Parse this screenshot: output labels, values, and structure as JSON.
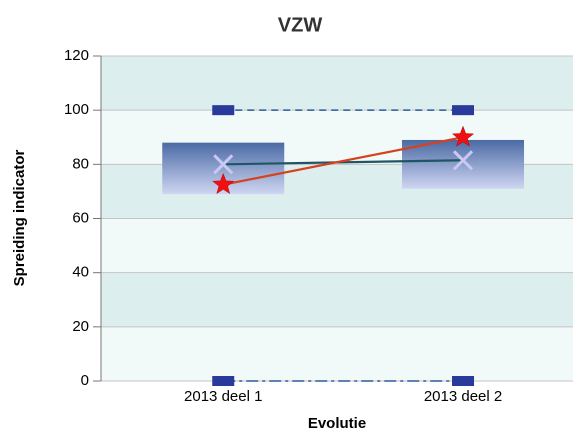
{
  "chart_data": {
    "type": "box",
    "title": "VZW",
    "x_label": "Evolutie",
    "y_label": "Spreiding indicator",
    "categories": [
      "2013 deel 1",
      "2013 deel 2"
    ],
    "ylim": [
      0,
      120
    ],
    "yticks": [
      0,
      20,
      40,
      60,
      80,
      100,
      120
    ],
    "grid": true,
    "boxes": {
      "q1": [
        69,
        71
      ],
      "q3": [
        88,
        89
      ],
      "color_top": "#4a6aa4",
      "color_bottom": "#d0d6f2"
    },
    "max": {
      "values": [
        100,
        100
      ],
      "color": "#2a3a9a",
      "line_color": "#2a5a9a"
    },
    "min": {
      "values": [
        0,
        0
      ],
      "color": "#2a3a9a",
      "line_color": "#2a5a9a"
    },
    "series": [
      {
        "marker": "x",
        "color": "#1f5566",
        "marker_color": "#c8c8f2",
        "values": [
          80,
          81.5
        ]
      },
      {
        "marker": "star",
        "color": "#d4421e",
        "marker_color": "#ee1111",
        "values": [
          72.5,
          90
        ]
      }
    ]
  }
}
